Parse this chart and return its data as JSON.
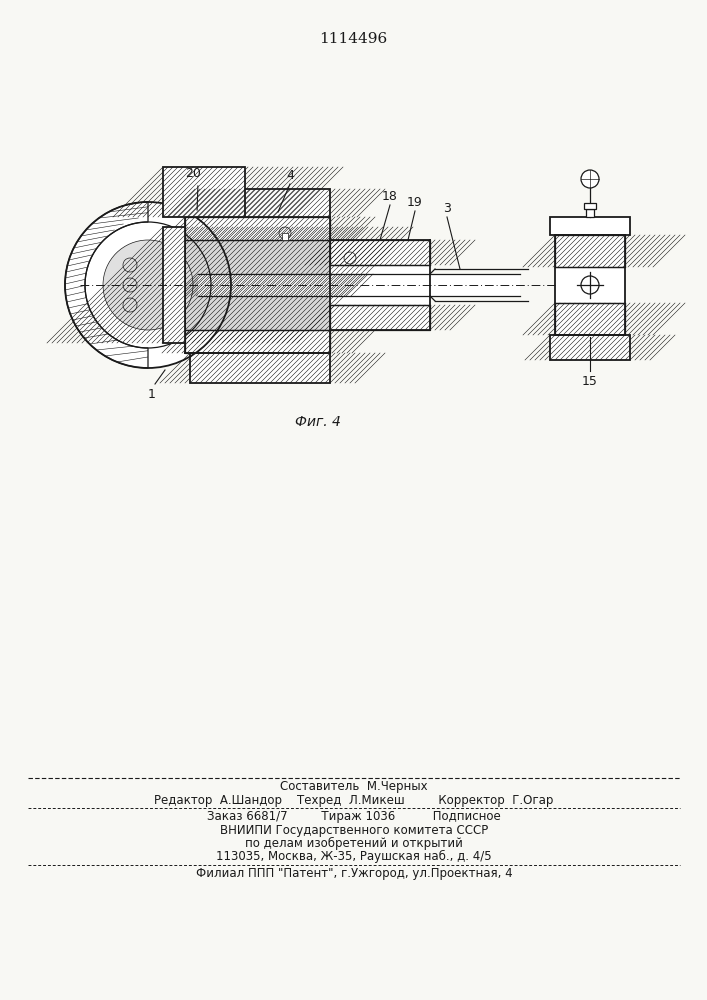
{
  "patent_number": "1114496",
  "fig_label": "Фиг. 4",
  "bg_color": "#f8f8f4",
  "line_color": "#1a1a1a",
  "footer": {
    "line1": "Составитель  М.Черных",
    "line2": "Редактор  А.Шандор    Техред  Л.Микеш         Корректор  Г.Огар",
    "line3": "Заказ 6681/7         Тираж 1036          Подписное",
    "line4": "ВНИИПИ Государственного комитета СССР",
    "line5": "по делам изобретений и открытий",
    "line6": "113035, Москва, Ж-35, Раушская наб., д. 4/5",
    "line7": "Филиал ППП \"Патент\", г.Ужгород, ул.Проектная, 4"
  }
}
